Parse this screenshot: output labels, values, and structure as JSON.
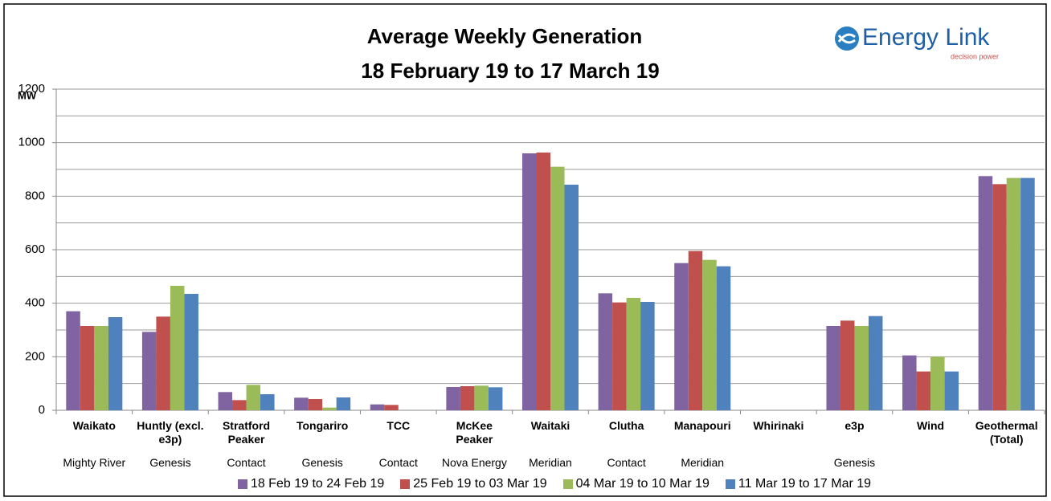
{
  "chart_data": {
    "type": "bar",
    "title": "Average Weekly Generation",
    "subtitle": "18 February 19 to 17 March 19",
    "y_label": "MW",
    "logo": {
      "name": "Energy Link",
      "tagline": "decision power"
    },
    "categories": [
      "Waikato",
      "Huntly (excl. e3p)",
      "Stratford Peaker",
      "Tongariro",
      "TCC",
      "McKee Peaker",
      "Waitaki",
      "Clutha",
      "Manapouri",
      "Whirinaki",
      "e3p",
      "Wind",
      "Geothermal (Total)"
    ],
    "owners": [
      "Mighty River",
      "Genesis",
      "Contact",
      "Genesis",
      "Contact",
      "Nova Energy",
      "Meridian",
      "Contact",
      "Meridian",
      null,
      "Genesis",
      null,
      null
    ],
    "series": [
      {
        "name": "18 Feb 19 to 24 Feb 19",
        "color": "#8064a2",
        "values": [
          370,
          293,
          68,
          47,
          22,
          87,
          960,
          437,
          550,
          0,
          315,
          205,
          875
        ]
      },
      {
        "name": "25 Feb 19 to 03 Mar 19",
        "color": "#c0504d",
        "values": [
          315,
          350,
          38,
          42,
          20,
          90,
          963,
          403,
          595,
          0,
          335,
          145,
          845
        ]
      },
      {
        "name": "04 Mar 19 to 10 Mar 19",
        "color": "#9bbb59",
        "values": [
          315,
          465,
          95,
          10,
          0,
          92,
          910,
          420,
          562,
          0,
          315,
          200,
          868
        ]
      },
      {
        "name": "11 Mar 19 to 17 Mar 19",
        "color": "#4f81bd",
        "values": [
          348,
          435,
          60,
          48,
          0,
          86,
          843,
          405,
          538,
          0,
          352,
          145,
          868
        ]
      }
    ],
    "ylim": [
      0,
      1200
    ],
    "yticks": [
      0,
      200,
      400,
      600,
      800,
      1000,
      1200
    ],
    "minor_gridlines": [
      100,
      300,
      500,
      700,
      900,
      1100
    ],
    "grid": true,
    "legend": "bottom"
  }
}
